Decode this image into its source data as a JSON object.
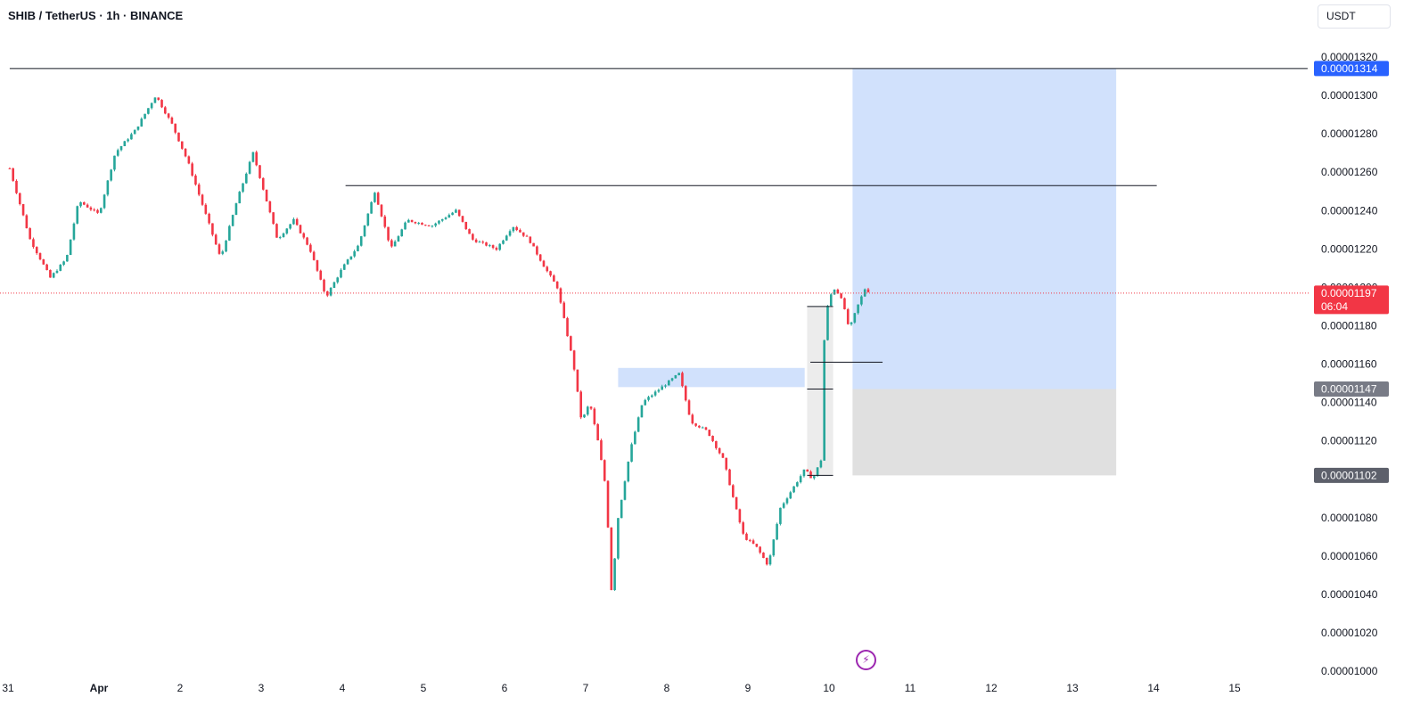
{
  "header": {
    "symbol_title": "SHIB / TetherUS · 1h · BINANCE",
    "currency_button": "USDT"
  },
  "indicators": {
    "flash_icon": "lightning-icon",
    "countdown": "06:04"
  },
  "colors": {
    "up": "#26a69a",
    "down": "#f23645",
    "target_zone": "#d1e1fc",
    "stop_zone": "#e0e0e0",
    "last_price_tag": "#f23645",
    "entry_tag": "#787b86",
    "target_tag": "#2962ff",
    "stop_tag": "#5d606b",
    "drawing_line": "#131722"
  },
  "chart_data": {
    "type": "candlestick",
    "timeframe": "1h",
    "y_axis": {
      "min": 1e-05,
      "max": 1.32e-05,
      "ticks": [
        "0.00001000",
        "0.00001020",
        "0.00001040",
        "0.00001060",
        "0.00001080",
        "0.00001100",
        "0.00001120",
        "0.00001140",
        "0.00001160",
        "0.00001180",
        "0.00001200",
        "0.00001220",
        "0.00001240",
        "0.00001260",
        "0.00001280",
        "0.00001300",
        "0.00001320"
      ]
    },
    "x_axis": {
      "ticks": [
        {
          "label": "31",
          "day": -1
        },
        {
          "label": "Apr",
          "day": 0,
          "bold": true
        },
        {
          "label": "2",
          "day": 1
        },
        {
          "label": "3",
          "day": 2
        },
        {
          "label": "4",
          "day": 3
        },
        {
          "label": "5",
          "day": 4
        },
        {
          "label": "6",
          "day": 5
        },
        {
          "label": "7",
          "day": 6
        },
        {
          "label": "8",
          "day": 7
        },
        {
          "label": "9",
          "day": 8
        },
        {
          "label": "10",
          "day": 9
        },
        {
          "label": "11",
          "day": 10
        },
        {
          "label": "12",
          "day": 11
        },
        {
          "label": "13",
          "day": 12
        },
        {
          "label": "14",
          "day": 13
        },
        {
          "label": "15",
          "day": 14
        }
      ]
    },
    "price_path": [
      [
        -1.1,
        1.262e-05
      ],
      [
        -0.85,
        1.225e-05
      ],
      [
        -0.6,
        1.205e-05
      ],
      [
        -0.4,
        1.215e-05
      ],
      [
        -0.25,
        1.245e-05
      ],
      [
        0.0,
        1.238e-05
      ],
      [
        0.2,
        1.27e-05
      ],
      [
        0.45,
        1.282e-05
      ],
      [
        0.7,
        1.3e-05
      ],
      [
        0.9,
        1.285e-05
      ],
      [
        1.1,
        1.265e-05
      ],
      [
        1.3,
        1.24e-05
      ],
      [
        1.5,
        1.215e-05
      ],
      [
        1.7,
        1.245e-05
      ],
      [
        1.9,
        1.27e-05
      ],
      [
        2.1,
        1.24e-05
      ],
      [
        2.2,
        1.225e-05
      ],
      [
        2.4,
        1.235e-05
      ],
      [
        2.6,
        1.22e-05
      ],
      [
        2.8,
        1.195e-05
      ],
      [
        3.0,
        1.21e-05
      ],
      [
        3.2,
        1.222e-05
      ],
      [
        3.4,
        1.25e-05
      ],
      [
        3.6,
        1.22e-05
      ],
      [
        3.8,
        1.235e-05
      ],
      [
        4.1,
        1.232e-05
      ],
      [
        4.4,
        1.24e-05
      ],
      [
        4.6,
        1.225e-05
      ],
      [
        4.9,
        1.22e-05
      ],
      [
        5.1,
        1.232e-05
      ],
      [
        5.3,
        1.225e-05
      ],
      [
        5.5,
        1.21e-05
      ],
      [
        5.65,
        1.2e-05
      ],
      [
        5.75,
        1.18e-05
      ],
      [
        5.85,
        1.16e-05
      ],
      [
        5.95,
        1.13e-05
      ],
      [
        6.05,
        1.14e-05
      ],
      [
        6.15,
        1.12e-05
      ],
      [
        6.25,
        1.095e-05
      ],
      [
        6.32,
        1.04e-05
      ],
      [
        6.4,
        1.08e-05
      ],
      [
        6.55,
        1.115e-05
      ],
      [
        6.7,
        1.14e-05
      ],
      [
        6.85,
        1.145e-05
      ],
      [
        7.0,
        1.15e-05
      ],
      [
        7.15,
        1.155e-05
      ],
      [
        7.3,
        1.13e-05
      ],
      [
        7.5,
        1.125e-05
      ],
      [
        7.7,
        1.11e-05
      ],
      [
        7.85,
        1.085e-05
      ],
      [
        7.95,
        1.07e-05
      ],
      [
        8.1,
        1.065e-05
      ],
      [
        8.25,
        1.055e-05
      ],
      [
        8.4,
        1.085e-05
      ],
      [
        8.55,
        1.095e-05
      ],
      [
        8.7,
        1.105e-05
      ],
      [
        8.8,
        1.1e-05
      ],
      [
        8.9,
        1.11e-05
      ],
      [
        8.95,
        1.185e-05
      ],
      [
        9.05,
        1.2e-05
      ],
      [
        9.15,
        1.195e-05
      ],
      [
        9.25,
        1.178e-05
      ],
      [
        9.35,
        1.19e-05
      ],
      [
        9.45,
        1.2e-05
      ],
      [
        9.5,
        1.197e-05
      ]
    ],
    "annotations": {
      "resistance_lines": [
        {
          "price": 1.314e-05,
          "from_day": -1.1,
          "to_day": 14.9
        },
        {
          "price": 1.253e-05,
          "from_day": 3.04,
          "to_day": 13.04
        }
      ],
      "demand_zone": {
        "from_day": 6.4,
        "to_day": 8.7,
        "top": 1.158e-05,
        "bottom": 1.148e-05
      },
      "long_position": {
        "from_day": 9.29,
        "to_day": 12.54,
        "target": 1.314e-05,
        "entry": 1.147e-05,
        "stop": 1.102e-05
      },
      "measure_box": {
        "from_day": 8.73,
        "to_day": 9.05,
        "top": 1.19e-05,
        "bottom": 1.102e-05
      },
      "marker_lines": [
        {
          "price": 1.161e-05,
          "from_day": 8.77,
          "to_day": 9.66
        },
        {
          "price": 1.147e-05,
          "from_day": 8.73,
          "to_day": 9.05
        }
      ]
    },
    "last_price": "0.00001197",
    "price_tags": {
      "target": "0.00001314",
      "entry": "0.00001147",
      "stop": "0.00001102",
      "last": "0.00001197"
    }
  }
}
